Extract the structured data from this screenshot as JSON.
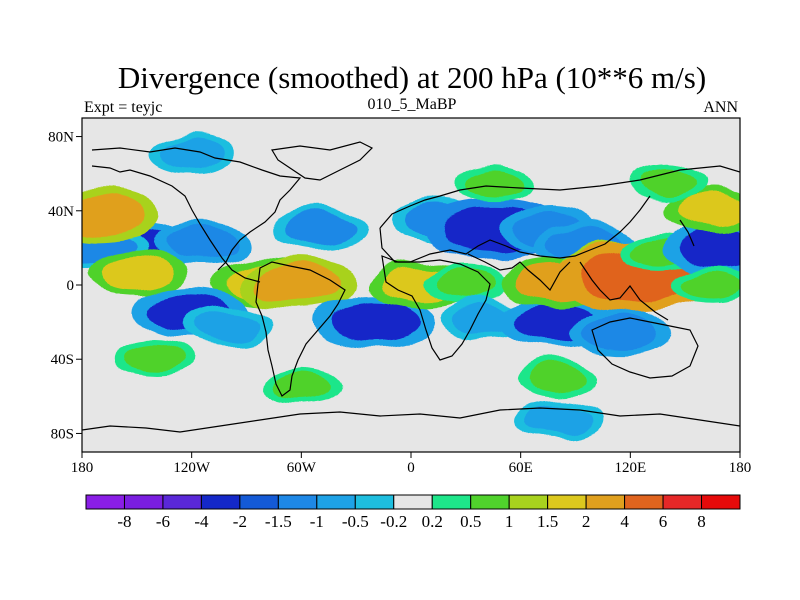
{
  "chart_data": {
    "type": "heatmap",
    "title": "Divergence (smoothed) at 200 hPa (10**6 m/s)",
    "subtitle_left": "Expt = teyjc",
    "subtitle_center": "010_5_MaBP",
    "subtitle_right": "ANN",
    "x_range": [
      -180,
      180
    ],
    "y_range": [
      -90,
      90
    ],
    "x_ticks": [
      {
        "value": -180,
        "label": "180"
      },
      {
        "value": -120,
        "label": "120W"
      },
      {
        "value": -60,
        "label": "60W"
      },
      {
        "value": 0,
        "label": "0"
      },
      {
        "value": 60,
        "label": "60E"
      },
      {
        "value": 120,
        "label": "120E"
      },
      {
        "value": 180,
        "label": "180"
      }
    ],
    "y_ticks": [
      {
        "value": 80,
        "label": "80N"
      },
      {
        "value": 40,
        "label": "40N"
      },
      {
        "value": 0,
        "label": "0"
      },
      {
        "value": -40,
        "label": "40S"
      },
      {
        "value": -80,
        "label": "80S"
      }
    ],
    "colorbar": {
      "levels": [
        "-8",
        "-6",
        "-4",
        "-2",
        "-1.5",
        "-1",
        "-0.5",
        "-0.2",
        "0.2",
        "0.5",
        "1",
        "1.5",
        "2",
        "4",
        "6",
        "8"
      ],
      "colors": [
        "#8a1ee6",
        "#7a1ee0",
        "#5a28d8",
        "#1428c8",
        "#145ad6",
        "#1e88e6",
        "#1ea2e6",
        "#1ebedf",
        "#e6e6e6",
        "#1ee68a",
        "#50d22c",
        "#a8d21e",
        "#dcc81e",
        "#e0a01e",
        "#e0641e",
        "#e62828",
        "#e60a0a"
      ]
    },
    "cells": [
      {
        "lon": -150,
        "lat": 20,
        "value": -2.5
      },
      {
        "lon": -170,
        "lat": 20,
        "value": -1.2
      },
      {
        "lon": -115,
        "lat": 22,
        "value": -1.4
      },
      {
        "lon": -150,
        "lat": 6,
        "value": 1.5
      },
      {
        "lon": -170,
        "lat": 38,
        "value": 2.5
      },
      {
        "lon": -80,
        "lat": 2,
        "value": 1.8
      },
      {
        "lon": -62,
        "lat": 0,
        "value": 2.5
      },
      {
        "lon": -120,
        "lat": -15,
        "value": -2.5
      },
      {
        "lon": -100,
        "lat": -22,
        "value": -1.0
      },
      {
        "lon": -140,
        "lat": -40,
        "value": 0.5
      },
      {
        "lon": -50,
        "lat": 30,
        "value": -1.2
      },
      {
        "lon": -20,
        "lat": -20,
        "value": -2.5
      },
      {
        "lon": 5,
        "lat": 0,
        "value": 1.8
      },
      {
        "lon": 15,
        "lat": 35,
        "value": -1.2
      },
      {
        "lon": 30,
        "lat": 0,
        "value": 0.8
      },
      {
        "lon": 40,
        "lat": -18,
        "value": -1.0
      },
      {
        "lon": 45,
        "lat": 30,
        "value": -3.5
      },
      {
        "lon": 75,
        "lat": 30,
        "value": -1.5
      },
      {
        "lon": 95,
        "lat": 22,
        "value": -1.5
      },
      {
        "lon": 80,
        "lat": -20,
        "value": -2.5
      },
      {
        "lon": 115,
        "lat": -25,
        "value": -1.5
      },
      {
        "lon": 80,
        "lat": 2,
        "value": 2.0
      },
      {
        "lon": 115,
        "lat": 10,
        "value": 2.5
      },
      {
        "lon": 125,
        "lat": 5,
        "value": 5.0
      },
      {
        "lon": 135,
        "lat": 18,
        "value": 0.5
      },
      {
        "lon": 170,
        "lat": 20,
        "value": -2.5
      },
      {
        "lon": 165,
        "lat": 40,
        "value": 1.5
      },
      {
        "lon": 165,
        "lat": 0,
        "value": 0.5
      },
      {
        "lon": -60,
        "lat": -55,
        "value": 0.5
      },
      {
        "lon": 80,
        "lat": -50,
        "value": 0.5
      },
      {
        "lon": 80,
        "lat": -72,
        "value": -0.8
      },
      {
        "lon": -120,
        "lat": 70,
        "value": -0.8
      },
      {
        "lon": 45,
        "lat": 55,
        "value": 0.5
      },
      {
        "lon": 140,
        "lat": 55,
        "value": 0.5
      }
    ]
  }
}
